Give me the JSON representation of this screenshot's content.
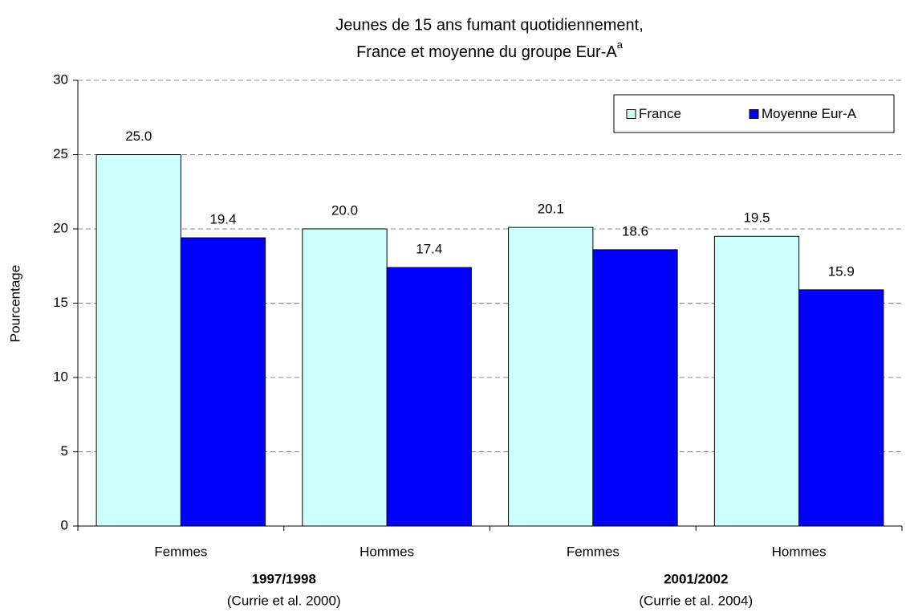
{
  "chart_data": {
    "type": "bar",
    "title": [
      "Jeunes de 15 ans fumant quotidiennement,",
      "France et moyenne du groupe Eur-A"
    ],
    "title_superscript": "a",
    "y_label": "Pourcentage",
    "categories": [
      "Femmes",
      "Hommes",
      "Femmes",
      "Hommes"
    ],
    "groups": [
      {
        "label": "1997/1998",
        "source": "(Currie et al. 2000)"
      },
      {
        "label": "2001/2002",
        "source": "(Currie et al. 2004)"
      }
    ],
    "series": [
      {
        "name": "France",
        "color": "#CCFFFF",
        "values": [
          25.0,
          20.0,
          20.1,
          19.5
        ],
        "value_labels": [
          "25.0",
          "20.0",
          "20.1",
          "19.5"
        ]
      },
      {
        "name": "Moyenne Eur-A",
        "color": "#0000FF",
        "values": [
          19.4,
          17.4,
          18.6,
          15.9
        ],
        "value_labels": [
          "19.4",
          "17.4",
          "18.6",
          "15.9"
        ]
      }
    ],
    "ylim": [
      0,
      30
    ],
    "yticks": [
      0,
      5,
      10,
      15,
      20,
      25,
      30
    ],
    "grid": true,
    "legend": "top-right"
  }
}
